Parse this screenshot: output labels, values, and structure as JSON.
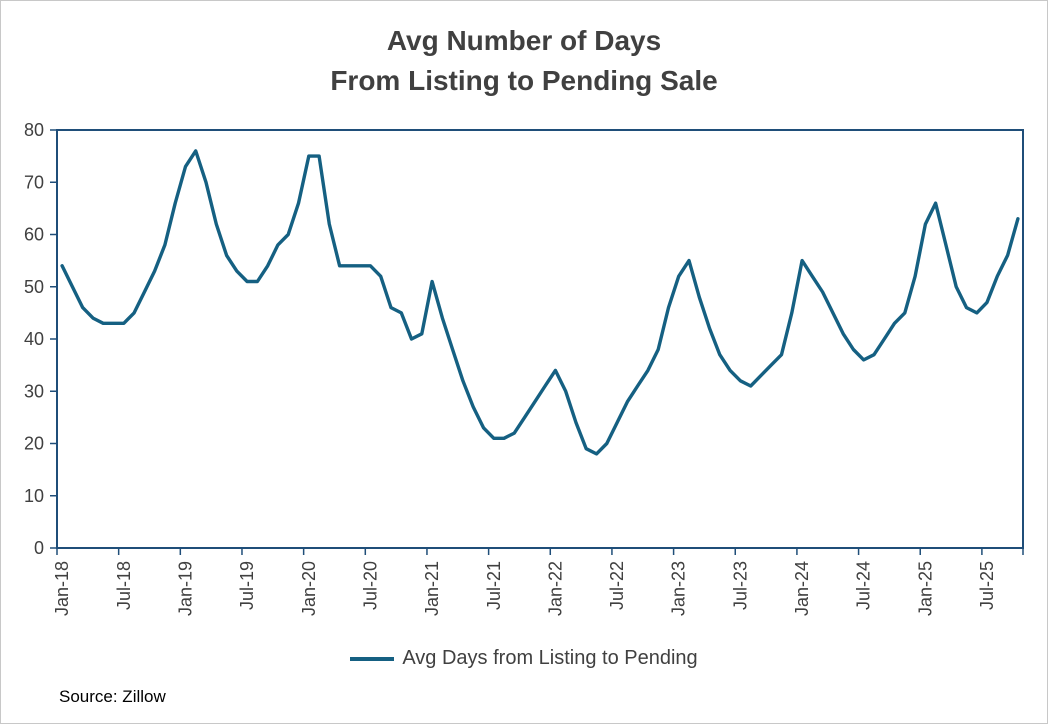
{
  "chart_data": {
    "type": "line",
    "title": "Avg Number of Days From Listing to Pending Sale",
    "title_lines": [
      "Avg Number of Days",
      "From Listing to Pending Sale"
    ],
    "xlabel": "",
    "ylabel": "",
    "ylim": [
      0,
      80
    ],
    "yticks": [
      0,
      10,
      20,
      30,
      40,
      50,
      60,
      70,
      80
    ],
    "grid": false,
    "legend_position": "bottom",
    "line_color": "#156082",
    "frame_color": "#1F4E79",
    "source": "Source: Zillow",
    "xtick_labels": [
      "Jan-18",
      "Jul-18",
      "Jan-19",
      "Jul-19",
      "Jan-20",
      "Jul-20",
      "Jan-21",
      "Jul-21",
      "Jan-22",
      "Jul-22",
      "Jan-23",
      "Jul-23",
      "Jan-24",
      "Jul-24",
      "Jan-25",
      "Jul-25"
    ],
    "categories": [
      "Jan-18",
      "Feb-18",
      "Mar-18",
      "Apr-18",
      "May-18",
      "Jun-18",
      "Jul-18",
      "Aug-18",
      "Sep-18",
      "Oct-18",
      "Nov-18",
      "Dec-18",
      "Jan-19",
      "Feb-19",
      "Mar-19",
      "Apr-19",
      "May-19",
      "Jun-19",
      "Jul-19",
      "Aug-19",
      "Sep-19",
      "Oct-19",
      "Nov-19",
      "Dec-19",
      "Jan-20",
      "Feb-20",
      "Mar-20",
      "Apr-20",
      "May-20",
      "Jun-20",
      "Jul-20",
      "Aug-20",
      "Sep-20",
      "Oct-20",
      "Nov-20",
      "Dec-20",
      "Jan-21",
      "Feb-21",
      "Mar-21",
      "Apr-21",
      "May-21",
      "Jun-21",
      "Jul-21",
      "Aug-21",
      "Sep-21",
      "Oct-21",
      "Nov-21",
      "Dec-21",
      "Jan-22",
      "Feb-22",
      "Mar-22",
      "Apr-22",
      "May-22",
      "Jun-22",
      "Jul-22",
      "Aug-22",
      "Sep-22",
      "Oct-22",
      "Nov-22",
      "Dec-22",
      "Jan-23",
      "Feb-23",
      "Mar-23",
      "Apr-23",
      "May-23",
      "Jun-23",
      "Jul-23",
      "Aug-23",
      "Sep-23",
      "Oct-23",
      "Nov-23",
      "Dec-23",
      "Jan-24",
      "Feb-24",
      "Mar-24",
      "Apr-24",
      "May-24",
      "Jun-24",
      "Jul-24",
      "Aug-24",
      "Sep-24",
      "Oct-24",
      "Nov-24",
      "Dec-24",
      "Jan-25",
      "Feb-25",
      "Mar-25",
      "Apr-25",
      "May-25",
      "Jun-25",
      "Jul-25",
      "Aug-25",
      "Sep-25",
      "Oct-25"
    ],
    "series": [
      {
        "name": "Avg Days from Listing to Pending",
        "values": [
          54,
          50,
          46,
          44,
          43,
          43,
          43,
          45,
          49,
          53,
          58,
          66,
          73,
          76,
          70,
          62,
          56,
          53,
          51,
          51,
          54,
          58,
          60,
          66,
          75,
          75,
          62,
          54,
          54,
          54,
          54,
          52,
          46,
          45,
          40,
          41,
          51,
          44,
          38,
          32,
          27,
          23,
          21,
          21,
          22,
          25,
          28,
          31,
          34,
          30,
          24,
          19,
          18,
          20,
          24,
          28,
          31,
          34,
          38,
          46,
          52,
          55,
          48,
          42,
          37,
          34,
          32,
          31,
          33,
          35,
          37,
          45,
          55,
          52,
          49,
          45,
          41,
          38,
          36,
          37,
          40,
          43,
          45,
          52,
          62,
          66,
          58,
          50,
          46,
          45,
          47,
          52,
          56,
          63
        ]
      }
    ]
  }
}
